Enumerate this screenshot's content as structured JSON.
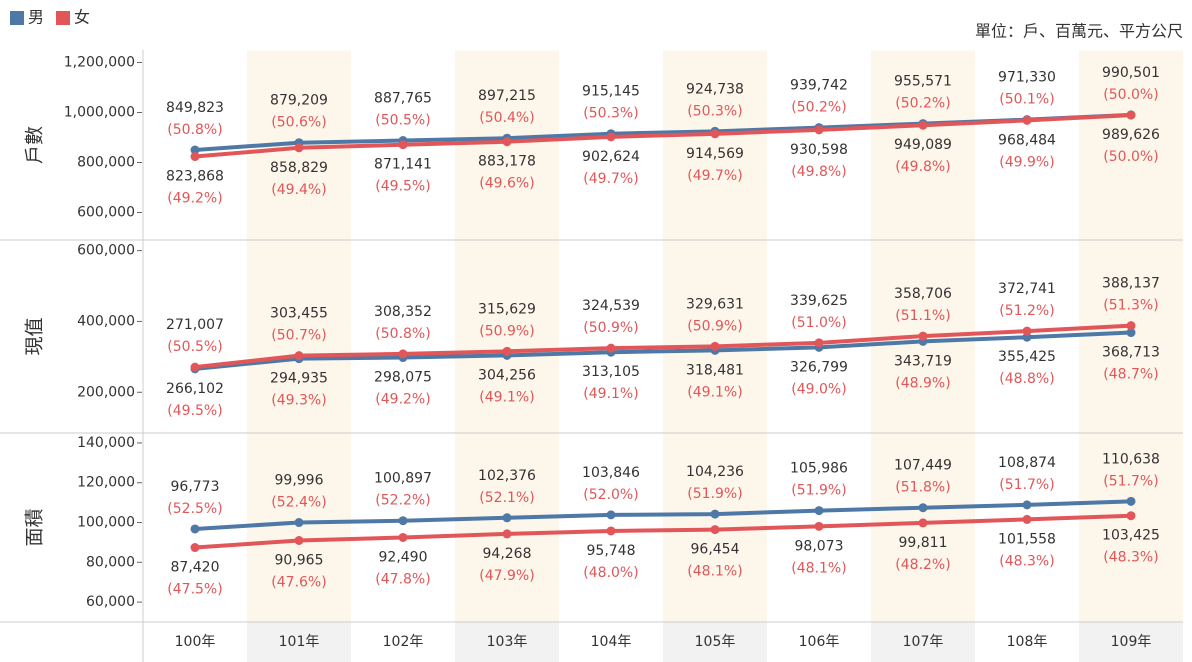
{
  "unit": "單位：戶、百萬元、平方公尺",
  "chart_data": [
    {
      "type": "line",
      "ylabel": "戶數",
      "ylim": [
        490000,
        1250000
      ],
      "yticks": [
        {
          "value": 600000,
          "label": "600,000"
        },
        {
          "value": 800000,
          "label": "800,000"
        },
        {
          "value": 1000000,
          "label": "1,000,000"
        },
        {
          "value": 1200000,
          "label": "1,200,000"
        }
      ],
      "series": [
        {
          "name": "男",
          "color": "#4e79a7",
          "values": [
            849823,
            879209,
            887765,
            897215,
            915145,
            924738,
            939742,
            955571,
            971330,
            990501
          ],
          "value_labels": [
            "849,823",
            "879,209",
            "887,765",
            "897,215",
            "915,145",
            "924,738",
            "939,742",
            "955,571",
            "971,330",
            "990,501"
          ],
          "pct_labels": [
            "(50.8%)",
            "(50.6%)",
            "(50.5%)",
            "(50.4%)",
            "(50.3%)",
            "(50.3%)",
            "(50.2%)",
            "(50.2%)",
            "(50.1%)",
            "(50.0%)"
          ]
        },
        {
          "name": "女",
          "color": "#e15759",
          "values": [
            823868,
            858829,
            871141,
            883178,
            902624,
            914569,
            930598,
            949089,
            968484,
            989626
          ],
          "value_labels": [
            "823,868",
            "858,829",
            "871,141",
            "883,178",
            "902,624",
            "914,569",
            "930,598",
            "949,089",
            "968,484",
            "989,626"
          ],
          "pct_labels": [
            "(49.2%)",
            "(49.4%)",
            "(49.5%)",
            "(49.6%)",
            "(49.7%)",
            "(49.7%)",
            "(49.8%)",
            "(49.8%)",
            "(49.9%)",
            "(50.0%)"
          ]
        }
      ]
    },
    {
      "type": "line",
      "ylabel": "現值",
      "ylim": [
        85000,
        630000
      ],
      "yticks": [
        {
          "value": 200000,
          "label": "200,000"
        },
        {
          "value": 400000,
          "label": "400,000"
        },
        {
          "value": 600000,
          "label": "600,000"
        }
      ],
      "series": [
        {
          "color": "#4e79a7",
          "values": [
            266102,
            294935,
            298075,
            304256,
            313105,
            318481,
            326799,
            343719,
            355425,
            368713
          ],
          "value_labels": [
            "266,102",
            "294,935",
            "298,075",
            "304,256",
            "313,105",
            "318,481",
            "326,799",
            "343,719",
            "355,425",
            "368,713"
          ],
          "pct_labels": [
            "(49.5%)",
            "(49.3%)",
            "(49.2%)",
            "(49.1%)",
            "(49.1%)",
            "(49.1%)",
            "(49.0%)",
            "(48.9%)",
            "(48.8%)",
            "(48.7%)"
          ]
        },
        {
          "color": "#e15759",
          "values": [
            271007,
            303455,
            308352,
            315629,
            324539,
            329631,
            339625,
            358706,
            372741,
            388137
          ],
          "value_labels": [
            "271,007",
            "303,455",
            "308,352",
            "315,629",
            "324,539",
            "329,631",
            "339,625",
            "358,706",
            "372,741",
            "388,137"
          ],
          "pct_labels": [
            "(50.5%)",
            "(50.7%)",
            "(50.8%)",
            "(50.9%)",
            "(50.9%)",
            "(50.9%)",
            "(51.0%)",
            "(51.1%)",
            "(51.2%)",
            "(51.3%)"
          ]
        }
      ]
    },
    {
      "type": "line",
      "ylabel": "面積",
      "ylim": [
        50000,
        145000
      ],
      "yticks": [
        {
          "value": 60000,
          "label": "60,000"
        },
        {
          "value": 80000,
          "label": "80,000"
        },
        {
          "value": 100000,
          "label": "100,000"
        },
        {
          "value": 120000,
          "label": "120,000"
        },
        {
          "value": 140000,
          "label": "140,000"
        }
      ],
      "categories": [
        "100年",
        "101年",
        "102年",
        "103年",
        "104年",
        "105年",
        "106年",
        "107年",
        "108年",
        "109年"
      ],
      "series": [
        {
          "color": "#4e79a7",
          "values": [
            96773,
            99996,
            100897,
            102376,
            103846,
            104236,
            105986,
            107449,
            108874,
            110638
          ],
          "value_labels": [
            "96,773",
            "99,996",
            "100,897",
            "102,376",
            "103,846",
            "104,236",
            "105,986",
            "107,449",
            "108,874",
            "110,638"
          ],
          "pct_labels": [
            "(52.5%)",
            "(52.4%)",
            "(52.2%)",
            "(52.1%)",
            "(52.0%)",
            "(51.9%)",
            "(51.9%)",
            "(51.8%)",
            "(51.7%)",
            "(51.7%)"
          ]
        },
        {
          "color": "#e15759",
          "values": [
            87420,
            90965,
            92490,
            94268,
            95748,
            96454,
            98073,
            99811,
            101558,
            103425
          ],
          "value_labels": [
            "87,420",
            "90,965",
            "92,490",
            "94,268",
            "95,748",
            "96,454",
            "98,073",
            "99,811",
            "101,558",
            "103,425"
          ],
          "pct_labels": [
            "(47.5%)",
            "(47.6%)",
            "(47.8%)",
            "(47.9%)",
            "(48.0%)",
            "(48.1%)",
            "(48.1%)",
            "(48.2%)",
            "(48.3%)",
            "(48.3%)"
          ]
        }
      ]
    }
  ]
}
